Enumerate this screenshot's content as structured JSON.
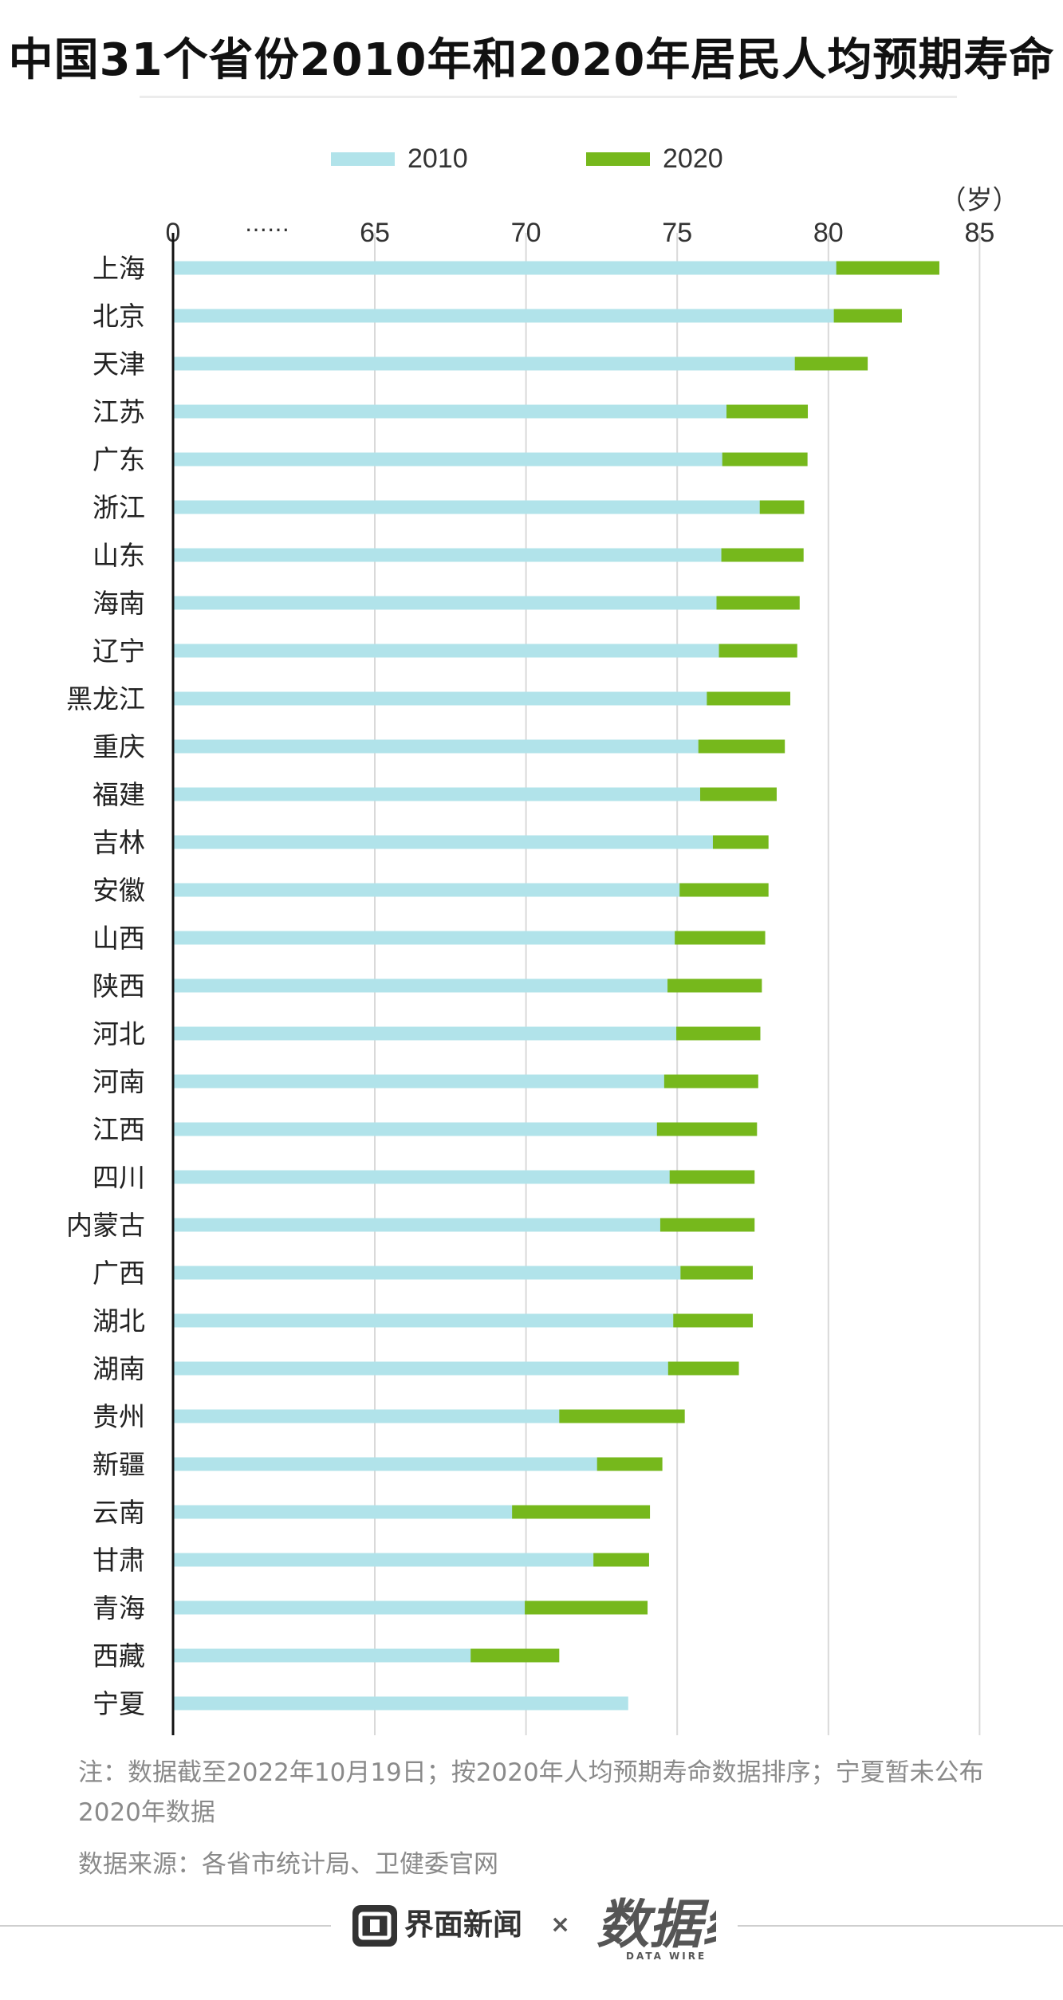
{
  "title": "中国31个省份2010年和2020年居民人均预期寿命",
  "legend": [
    {
      "label": "2010",
      "color": "#b1e3ea"
    },
    {
      "label": "2020",
      "color": "#76b81c"
    }
  ],
  "note": "注：数据截至2022年10月19日；按2020年人均预期寿命数据排序；宁夏暂未公布2020年数据",
  "source": "数据来源：各省市统计局、卫健委官网",
  "footer": {
    "brand": "界面新闻",
    "times": "×",
    "partner": "数据线",
    "partner_sub": "DATA WIRE",
    "logo_icon": "jiemian-logo-icon"
  },
  "chart_data": {
    "type": "bar",
    "orientation": "horizontal",
    "unit": "（岁）",
    "axis_break": "……",
    "x_ticks": [
      "0",
      "65",
      "70",
      "75",
      "80",
      "85"
    ],
    "xlim": [
      60,
      85
    ],
    "categories": [
      "上海",
      "北京",
      "天津",
      "江苏",
      "广东",
      "浙江",
      "山东",
      "海南",
      "辽宁",
      "黑龙江",
      "重庆",
      "福建",
      "吉林",
      "安徽",
      "山西",
      "陕西",
      "河北",
      "河南",
      "江西",
      "四川",
      "内蒙古",
      "广西",
      "湖北",
      "湖南",
      "贵州",
      "新疆",
      "云南",
      "甘肃",
      "青海",
      "西藏",
      "宁夏"
    ],
    "series": [
      {
        "name": "2010",
        "color": "#b1e3ea",
        "values": [
          80.26,
          80.18,
          78.89,
          76.63,
          76.49,
          77.73,
          76.46,
          76.3,
          76.38,
          75.98,
          75.7,
          75.76,
          76.18,
          75.08,
          74.92,
          74.68,
          74.97,
          74.57,
          74.33,
          74.75,
          74.44,
          75.11,
          74.87,
          74.7,
          71.1,
          72.35,
          69.54,
          72.23,
          69.96,
          68.17,
          73.38
        ]
      },
      {
        "name": "2020",
        "color": "#76b81c",
        "values": [
          83.67,
          82.43,
          81.3,
          79.32,
          79.31,
          79.2,
          79.18,
          79.05,
          78.97,
          78.74,
          78.56,
          78.29,
          78.02,
          78.02,
          77.91,
          77.8,
          77.75,
          77.68,
          77.64,
          77.56,
          77.56,
          77.5,
          77.5,
          77.04,
          75.25,
          74.51,
          74.1,
          74.07,
          74.02,
          71.1,
          null
        ]
      }
    ]
  }
}
